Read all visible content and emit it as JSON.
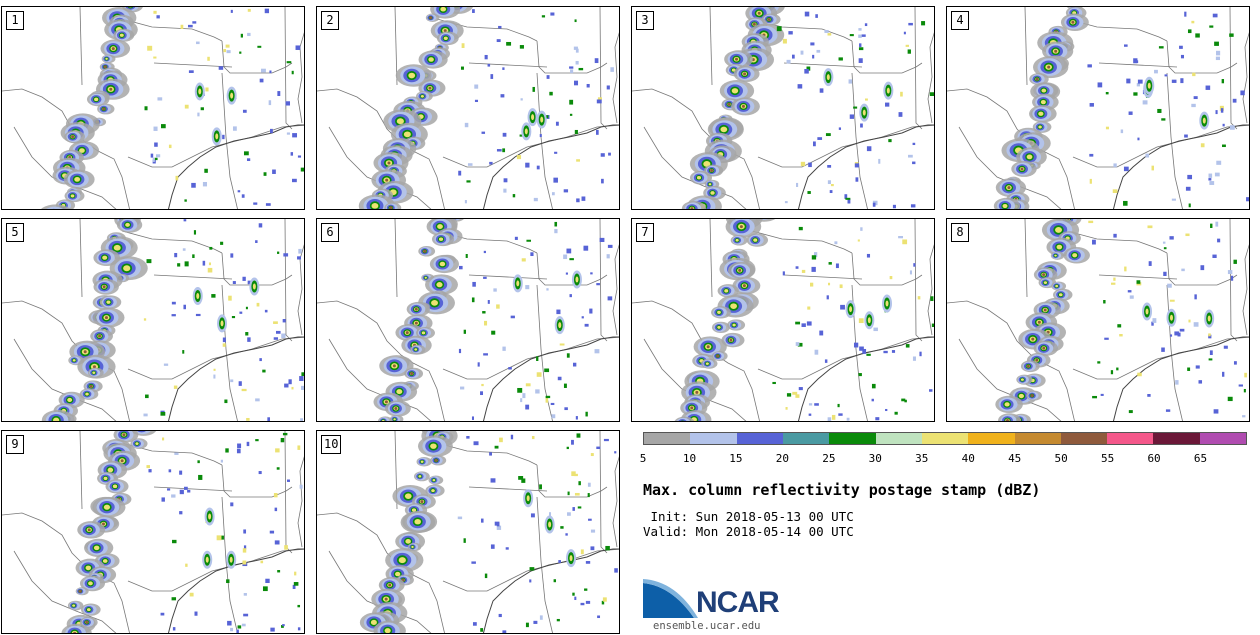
{
  "panels": [
    {
      "label": "1",
      "seed": 11
    },
    {
      "label": "2",
      "seed": 23
    },
    {
      "label": "3",
      "seed": 37
    },
    {
      "label": "4",
      "seed": 41
    },
    {
      "label": "5",
      "seed": 53
    },
    {
      "label": "6",
      "seed": 67
    },
    {
      "label": "7",
      "seed": 79
    },
    {
      "label": "8",
      "seed": 83
    },
    {
      "label": "9",
      "seed": 97
    },
    {
      "label": "10",
      "seed": 101
    }
  ],
  "colorbar": {
    "colors": [
      "#a6a6a6",
      "#b3c3ea",
      "#5763d6",
      "#4a9aa2",
      "#0a8a0a",
      "#bfe3bf",
      "#ece273",
      "#f0b21c",
      "#c58a30",
      "#8f5a3c",
      "#f4588a",
      "#6b1838",
      "#b04cb0"
    ],
    "ticks": [
      "5",
      "10",
      "15",
      "20",
      "25",
      "30",
      "35",
      "40",
      "45",
      "50",
      "55",
      "60",
      "65"
    ]
  },
  "title": "Max. column reflectivity postage stamp (dBZ)",
  "init": " Init: Sun 2018-05-13 00 UTC",
  "valid": "Valid: Mon 2018-05-14 00 UTC",
  "logo": {
    "text": "NCAR",
    "url": "ensemble.ucar.edu"
  }
}
